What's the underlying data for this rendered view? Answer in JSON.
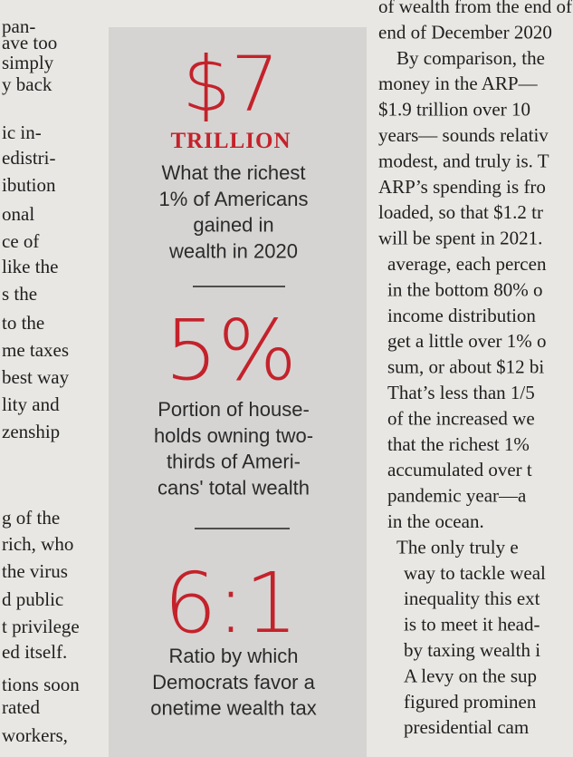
{
  "left_column": [
    "pan-",
    "ave too",
    "simply",
    "y back",
    "ic in-",
    "edistri-",
    "ibution",
    "onal",
    "ce of",
    "like the",
    "s the",
    "to the",
    "me taxes",
    "best way",
    "lity and",
    "zenship",
    "g of the",
    "rich, who",
    "the virus",
    "d public",
    "t privilege",
    "ed itself.",
    "tions soon",
    "rated",
    "workers,"
  ],
  "sidebar": [
    {
      "figure": "$7",
      "unit": "TRILLION",
      "description": [
        "What the richest",
        "1% of Americans",
        "gained in",
        "wealth in 2020"
      ]
    },
    {
      "figure": "5%",
      "description": [
        "Portion of house-",
        "holds owning two-",
        "thirds of Ameri-",
        "cans' total wealth"
      ]
    },
    {
      "figure": "6:1",
      "description": [
        "Ratio by which",
        "Democrats favor a",
        "onetime wealth tax"
      ]
    }
  ],
  "right_column": [
    "of wealth from the end of March to t",
    "end of December 2020",
    "By comparison, the",
    "money in the ARP—",
    "$1.9 trillion over 10",
    "years— sounds relativ",
    "modest, and truly is. T",
    "ARP’s spending is fro",
    "loaded, so that $1.2 tr",
    "will be spent in 2021.",
    "average, each percen",
    "in the bottom 80% o",
    "income distribution",
    "get a little over 1% o",
    "sum, or about $12 bi",
    "That’s less than 1/5",
    "of the increased we",
    "that the richest 1%",
    "accumulated over t",
    "pandemic year—a",
    "in the ocean.",
    "The only truly e",
    "way to tackle weal",
    "inequality this ext",
    "is to meet it head-",
    "by taxing wealth i",
    "A levy on the sup",
    "figured prominen",
    "presidential cam"
  ]
}
